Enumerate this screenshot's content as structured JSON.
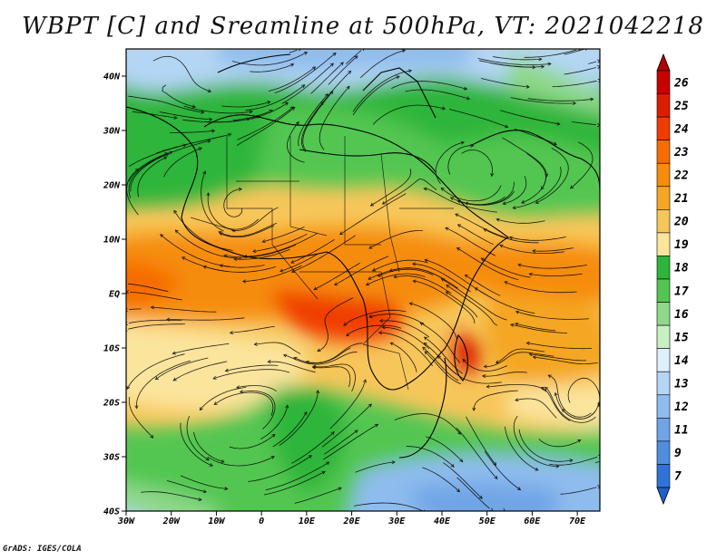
{
  "title": "WBPT [C] and Sreamline at 500hPa, VT: 2021042218",
  "credit": "GrADS: IGES/COLA",
  "map": {
    "lat_labels": [
      "40N",
      "30N",
      "20N",
      "10N",
      "EQ",
      "10S",
      "20S",
      "30S",
      "40S"
    ],
    "lat_values": [
      40,
      30,
      20,
      10,
      0,
      -10,
      -20,
      -30,
      -40
    ],
    "lon_labels": [
      "30W",
      "20W",
      "10W",
      "0",
      "10E",
      "20E",
      "30E",
      "40E",
      "50E",
      "60E",
      "70E"
    ],
    "lon_values": [
      -30,
      -20,
      -10,
      0,
      10,
      20,
      30,
      40,
      50,
      60,
      70
    ],
    "lon_range": [
      -30,
      75
    ],
    "lat_range": [
      -40,
      45
    ]
  },
  "colorbar": {
    "labels": [
      "26",
      "25",
      "24",
      "23",
      "22",
      "21",
      "20",
      "19",
      "18",
      "17",
      "16",
      "15",
      "14",
      "13",
      "12",
      "11",
      "9",
      "7"
    ],
    "colors": [
      "#c80000",
      "#dc1e00",
      "#f03c00",
      "#f56c00",
      "#f68c0a",
      "#f5a623",
      "#f7c65a",
      "#fbe49c",
      "#2eb53b",
      "#52c651",
      "#8ed88a",
      "#c9f0c3",
      "#dfeffb",
      "#b4d6f5",
      "#8fbcee",
      "#6fa5e6",
      "#4f8ede",
      "#2f73d6"
    ]
  },
  "icons": {
    "map_field": "wet-bulb-potential-temperature-field",
    "streamlines": "streamline-arrows"
  }
}
